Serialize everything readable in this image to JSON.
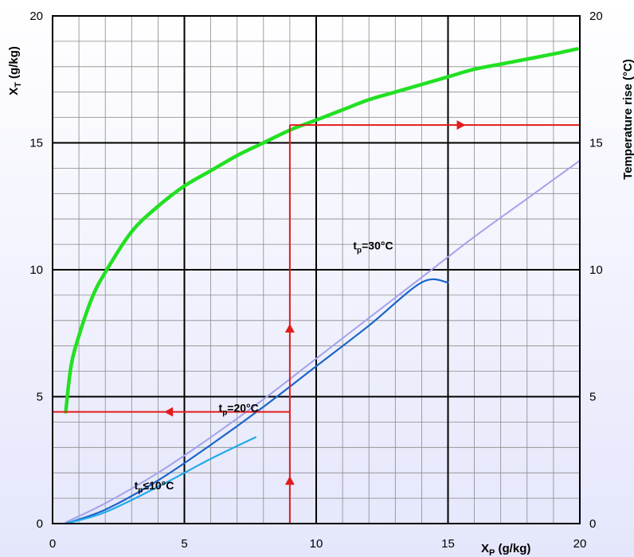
{
  "chart_data": {
    "type": "line",
    "xlim": [
      0,
      20
    ],
    "ylim": [
      0,
      20
    ],
    "y2lim": [
      0,
      20
    ],
    "grid": true,
    "xlabel": {
      "main": "X",
      "sub": "P",
      "rest": " (g/kg)"
    },
    "ylabel": {
      "main": "X",
      "sub": "T",
      "rest": " (g/kg)"
    },
    "y2label": "Temperature rise (°C)",
    "x_ticks": [
      "0",
      "5",
      "10",
      "15",
      "20"
    ],
    "y_ticks": [
      "0",
      "5",
      "10",
      "15",
      "20"
    ],
    "y2_ticks": [
      "0",
      "5",
      "10",
      "15",
      "20"
    ],
    "series": [
      {
        "color": "#22e022",
        "axis": "y2",
        "x": [
          0.5,
          0.7,
          1,
          1.5,
          2,
          3,
          4,
          5,
          6,
          7,
          8,
          9,
          10,
          11,
          12,
          13,
          14,
          15,
          16,
          17,
          18,
          19,
          19.9
        ],
        "y": [
          4.4,
          6.2,
          7.4,
          8.9,
          9.9,
          11.5,
          12.5,
          13.3,
          13.9,
          14.5,
          15.0,
          15.5,
          15.9,
          16.3,
          16.7,
          17.0,
          17.3,
          17.6,
          17.9,
          18.1,
          18.3,
          18.5,
          18.7
        ]
      },
      {
        "color": "#a2a2ec",
        "x": [
          0.5,
          2,
          4,
          6,
          8,
          10,
          12,
          14,
          16,
          18,
          20
        ],
        "y": [
          0.05,
          0.8,
          2.0,
          3.4,
          4.9,
          6.5,
          8.1,
          9.7,
          11.3,
          12.8,
          14.3
        ]
      },
      {
        "color": "#1a64c8",
        "x": [
          0.5,
          2,
          4,
          6,
          8,
          10,
          12,
          14,
          15
        ],
        "y": [
          0,
          0.55,
          1.7,
          3.1,
          4.6,
          6.2,
          7.8,
          9.5,
          9.5
        ]
      },
      {
        "color": "#22aaee",
        "x": [
          0.5,
          2,
          4,
          6,
          7.7
        ],
        "y": [
          0,
          0.45,
          1.45,
          2.55,
          3.4
        ]
      }
    ],
    "guides": [
      {
        "x": [
          9,
          9
        ],
        "y": [
          0,
          15.7
        ]
      },
      {
        "x": [
          9,
          20
        ],
        "y": [
          15.7,
          15.7
        ]
      },
      {
        "x": [
          0,
          9
        ],
        "y": [
          4.4,
          4.4
        ]
      }
    ],
    "arrows": [
      {
        "x": 9,
        "y": 1.7,
        "dir": "up"
      },
      {
        "x": 9,
        "y": 7.7,
        "dir": "up"
      },
      {
        "x": 4.4,
        "y": 4.4,
        "dir": "left"
      },
      {
        "x": 15.5,
        "y": 15.7,
        "dir": "right"
      }
    ],
    "annotations": [
      {
        "x": 11.4,
        "y": 10.8,
        "main": "t",
        "sub": "p",
        "rest": "=30°C"
      },
      {
        "x": 3.1,
        "y": 1.35,
        "main": "t",
        "sub": "p",
        "rest": "≤10°C"
      },
      {
        "x": 6.3,
        "y": 4.4,
        "main": "t",
        "sub": "p",
        "rest": "=20°C"
      }
    ]
  }
}
